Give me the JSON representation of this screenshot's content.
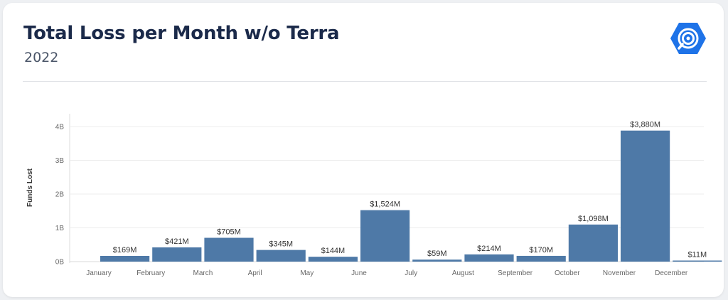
{
  "header": {
    "title": "Total Loss per Month w/o Terra",
    "subtitle": "2022",
    "logo_icon": "certik-logo-icon"
  },
  "colors": {
    "bar": "#4e79a7",
    "title": "#1b2a4a",
    "logo": "#1e73e8"
  },
  "chart_data": {
    "type": "bar",
    "title": "Total Loss per Month w/o Terra",
    "subtitle": "2022",
    "xlabel": "",
    "ylabel": "Funds Lost",
    "categories": [
      "January",
      "February",
      "March",
      "April",
      "May",
      "June",
      "July",
      "August",
      "September",
      "October",
      "November",
      "December"
    ],
    "values": [
      169,
      421,
      705,
      345,
      144,
      1524,
      59,
      214,
      170,
      1098,
      3880,
      11
    ],
    "value_labels": [
      "$169M",
      "$421M",
      "$705M",
      "$345M",
      "$144M",
      "$1,524M",
      "$59M",
      "$214M",
      "$170M",
      "$1,098M",
      "$3,880M",
      "$11M"
    ],
    "unit": "millions USD",
    "yticks": [
      0,
      1000,
      2000,
      3000,
      4000
    ],
    "ytick_labels": [
      "0B",
      "1B",
      "2B",
      "3B",
      "4B"
    ],
    "ylim": [
      0,
      4400
    ],
    "grid": true,
    "legend": "none"
  }
}
